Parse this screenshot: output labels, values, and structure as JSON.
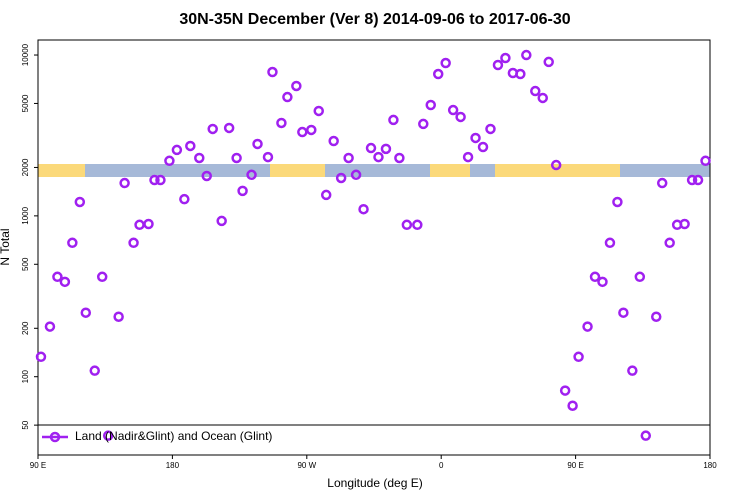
{
  "chart_data": {
    "type": "scatter",
    "title": "30N-35N December (Ver 8)   2014-09-06 to 2017-06-30",
    "x_label": "Longitude (deg E)",
    "y_label": "N Total",
    "log_y": true,
    "xlim": [
      90,
      540
    ],
    "ylim": [
      32.6,
      12400
    ],
    "xticks": [
      {
        "value": 90,
        "label": "90 E"
      },
      {
        "value": 180,
        "label": "180"
      },
      {
        "value": 270,
        "label": "90 W"
      },
      {
        "value": 360,
        "label": "0"
      },
      {
        "value": 450,
        "label": "90 E"
      },
      {
        "value": 540,
        "label": "180"
      }
    ],
    "yticks": [
      50,
      100,
      200,
      500,
      1000,
      2000,
      5000,
      10000
    ],
    "legend": "bottom",
    "series": [
      {
        "name": "Land (Nadir&Glint) and Ocean (Glint)",
        "color": "#a020f0",
        "x": [
          92,
          98,
          103,
          108,
          113,
          118,
          122,
          128,
          133,
          137,
          144,
          148,
          154,
          158,
          164,
          168,
          172,
          178,
          183,
          188,
          192,
          198,
          203,
          207,
          213,
          218,
          223,
          227,
          233,
          237,
          244,
          247,
          253,
          257,
          263,
          267,
          273,
          278,
          283,
          288,
          293,
          298,
          303,
          308,
          313,
          318,
          323,
          328,
          332,
          337,
          344,
          348,
          353,
          358,
          363,
          368,
          373,
          378,
          383,
          388,
          393,
          398,
          403,
          408,
          413,
          417,
          423,
          428,
          432,
          437,
          443,
          448,
          452,
          458,
          463,
          468,
          473,
          478,
          482,
          488,
          493,
          497,
          504,
          508,
          513,
          518,
          523,
          528,
          532,
          537
        ],
        "values": [
          133,
          205,
          418,
          389,
          680,
          1220,
          250,
          109,
          418,
          43,
          236,
          1600,
          680,
          880,
          890,
          1670,
          1670,
          2200,
          2570,
          1270,
          2720,
          2290,
          1770,
          3470,
          930,
          3520,
          2290,
          1430,
          1800,
          2800,
          2320,
          7840,
          3780,
          5480,
          6420,
          3320,
          3420,
          4490,
          1350,
          2920,
          1720,
          2290,
          1800,
          1100,
          2640,
          2320,
          2610,
          3950,
          2290,
          880,
          880,
          3730,
          4890,
          7620,
          8920,
          4550,
          4120,
          2320,
          3050,
          2680,
          3470,
          8670,
          9580,
          7730,
          7620,
          10000,
          5970,
          5410,
          9060,
          2070,
          82,
          66,
          133,
          205,
          418,
          389,
          680,
          1220,
          250,
          109,
          418,
          43,
          236,
          1600,
          680,
          880,
          890,
          1670,
          1670,
          2200
        ]
      }
    ]
  }
}
